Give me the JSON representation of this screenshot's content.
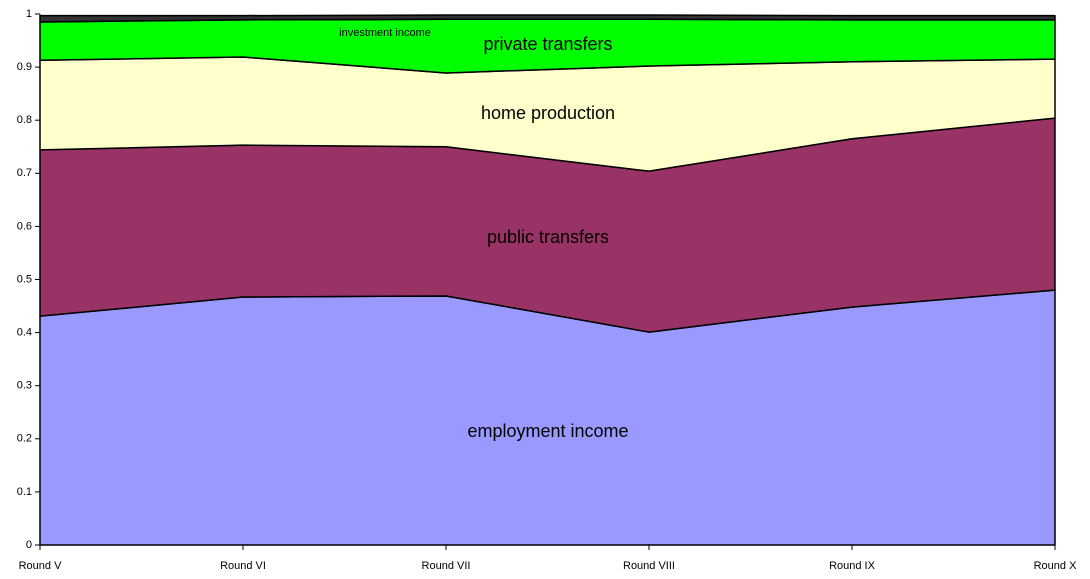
{
  "chart_data": {
    "type": "stacked-area",
    "categories": [
      "Round V",
      "Round VI",
      "Round VII",
      "Round VIII",
      "Round IX",
      "Round X"
    ],
    "series": [
      {
        "name": "employment income",
        "color": "#9999ff",
        "values": [
          0.431,
          0.467,
          0.469,
          0.401,
          0.448,
          0.48
        ]
      },
      {
        "name": "public transfers",
        "color": "#993366",
        "values": [
          0.313,
          0.286,
          0.281,
          0.303,
          0.317,
          0.324
        ]
      },
      {
        "name": "home production",
        "color": "#ffffcc",
        "values": [
          0.169,
          0.166,
          0.139,
          0.198,
          0.145,
          0.111
        ]
      },
      {
        "name": "private transfers",
        "color": "#00ff00",
        "values": [
          0.072,
          0.07,
          0.101,
          0.088,
          0.079,
          0.074
        ]
      },
      {
        "name": "investment income",
        "color": "#333333",
        "values": [
          0.012,
          0.008,
          0.008,
          0.008,
          0.008,
          0.008
        ]
      }
    ],
    "ylim": [
      0,
      1
    ],
    "yticks": [
      0,
      0.1,
      0.2,
      0.3,
      0.4,
      0.5,
      0.6,
      0.7,
      0.8,
      0.9,
      1
    ],
    "grid": false
  }
}
